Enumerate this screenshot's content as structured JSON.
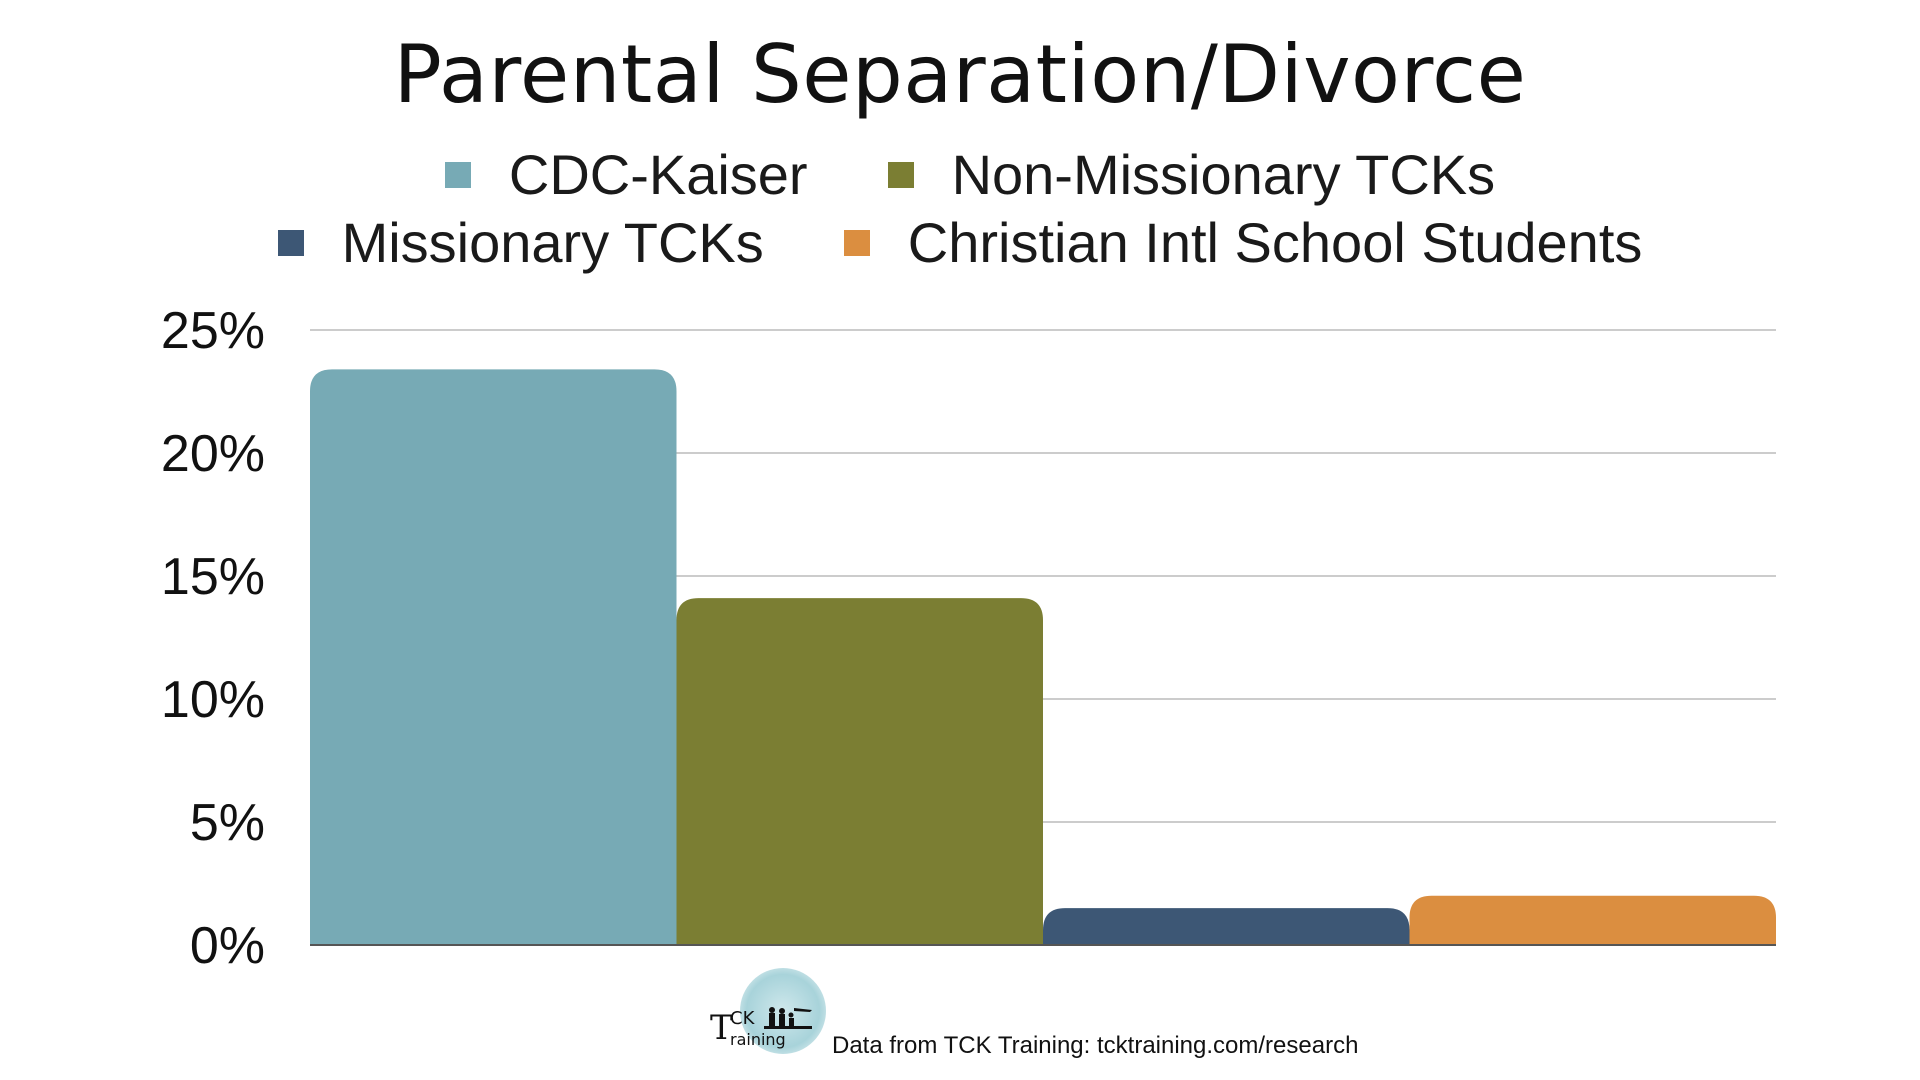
{
  "chart_data": {
    "type": "bar",
    "title": "Parental Separation/Divorce",
    "categories": [
      ""
    ],
    "series": [
      {
        "name": "CDC-Kaiser",
        "values": [
          23.4
        ],
        "color": "#77aab5"
      },
      {
        "name": "Non-Missionary TCKs",
        "values": [
          14.1
        ],
        "color": "#7b7e33"
      },
      {
        "name": "Missionary TCKs",
        "values": [
          1.5
        ],
        "color": "#3d5775"
      },
      {
        "name": "Christian Intl School Students",
        "values": [
          2.0
        ],
        "color": "#db8e40"
      }
    ],
    "yticks": [
      "0%",
      "5%",
      "10%",
      "15%",
      "20%",
      "25%"
    ],
    "ylim": [
      0,
      25
    ],
    "xlabel": "",
    "ylabel": "",
    "grid": true,
    "legend": "top"
  },
  "footer": {
    "logo_t": "T",
    "logo_ck": "CK",
    "logo_raining": "raining",
    "source": "Data from TCK Training: tcktraining.com/research"
  },
  "colors": {
    "grid": "#cccccc",
    "axis": "#555555",
    "text": "#111111"
  }
}
